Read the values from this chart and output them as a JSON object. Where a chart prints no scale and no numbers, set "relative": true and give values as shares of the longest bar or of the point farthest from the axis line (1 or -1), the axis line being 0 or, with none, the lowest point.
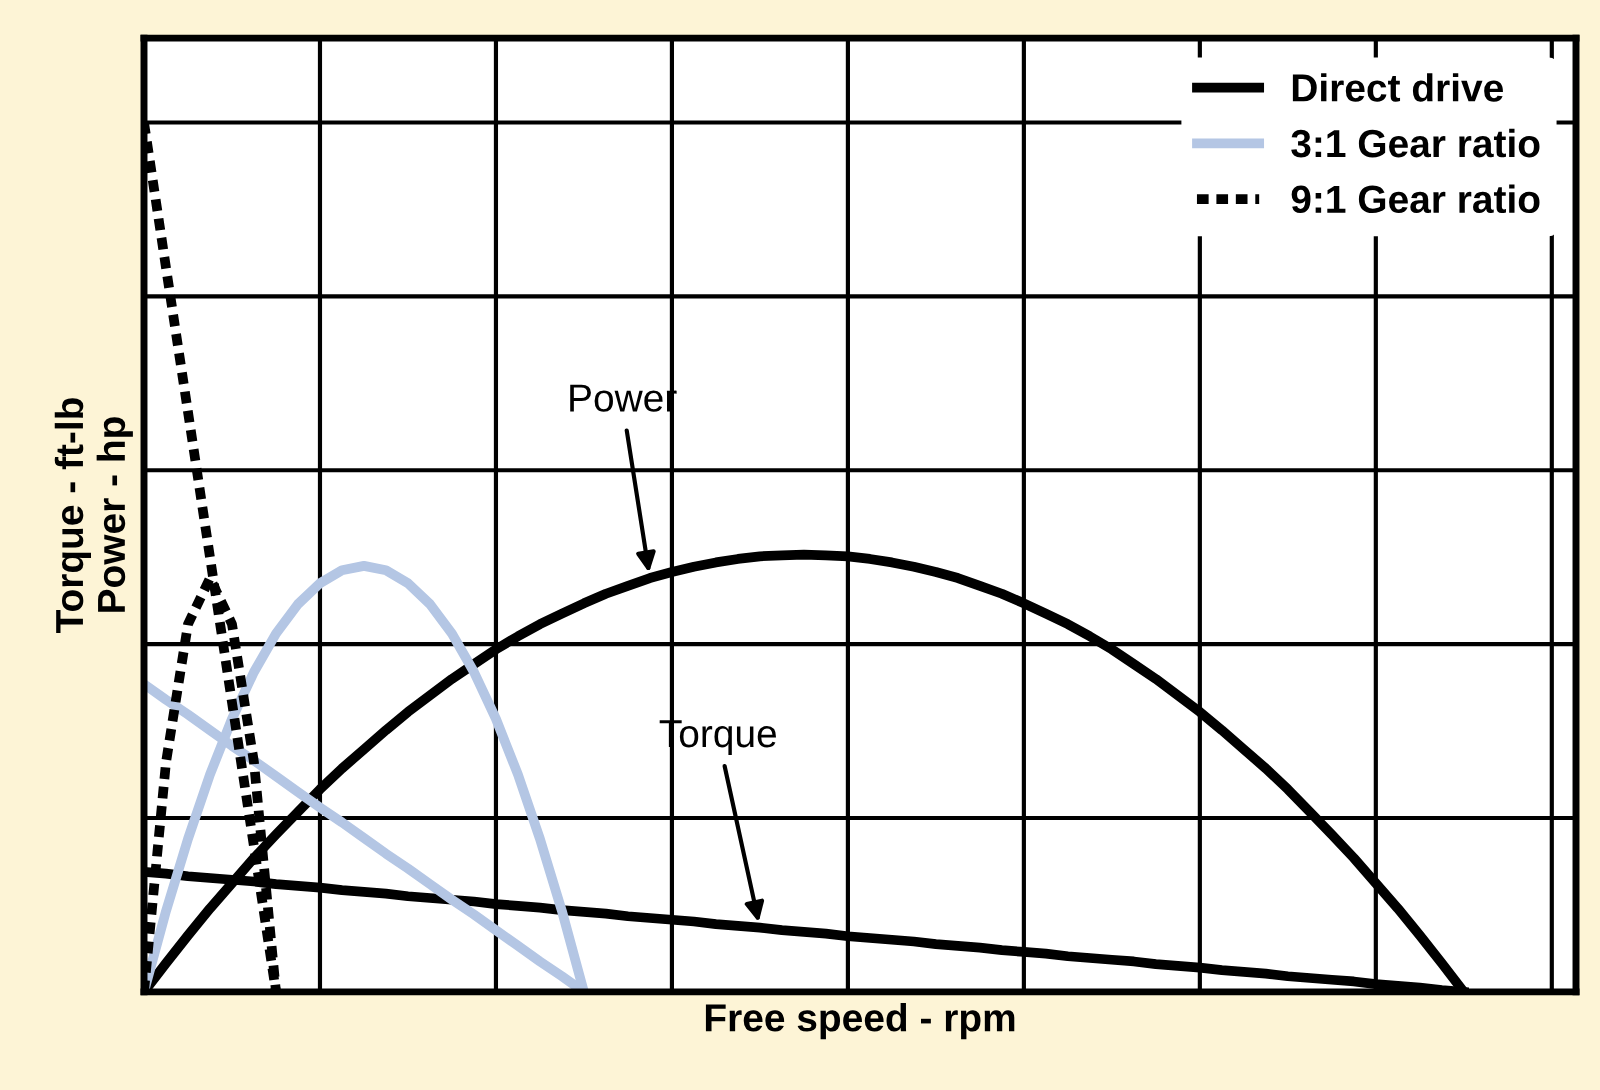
{
  "chart_data": {
    "type": "line",
    "relative": true,
    "xlabel": "Free speed - rpm",
    "ylabel": "Torque - ft-lb\nPower - hp",
    "grid": true,
    "legend": "top right",
    "categories": [
      null,
      null,
      null,
      null,
      null,
      null,
      null,
      null,
      null,
      null,
      null,
      null,
      null,
      null,
      null,
      null,
      null,
      null,
      null,
      null,
      null,
      null,
      null,
      null,
      null,
      null,
      null,
      null,
      null,
      null,
      null,
      null,
      null,
      null,
      null,
      null,
      null,
      null,
      null,
      null,
      null,
      null,
      null,
      null,
      null,
      null,
      null,
      null,
      null,
      null,
      null,
      null,
      null,
      null,
      null,
      null,
      null,
      null,
      null,
      null,
      null
    ],
    "series": [
      {
        "name": "Direct drive",
        "color": "#000000",
        "line_style": "solid",
        "values": [
          0.138,
          0.136,
          0.133,
          0.131,
          0.129,
          0.127,
          0.124,
          0.122,
          0.12,
          0.117,
          0.115,
          0.113,
          0.11,
          0.108,
          0.106,
          0.104,
          0.101,
          0.099,
          0.097,
          0.094,
          0.092,
          0.09,
          0.087,
          0.085,
          0.083,
          0.081,
          0.078,
          0.076,
          0.074,
          0.071,
          0.069,
          0.067,
          0.064,
          0.062,
          0.06,
          0.058,
          0.055,
          0.053,
          0.051,
          0.048,
          0.046,
          0.044,
          0.041,
          0.039,
          0.037,
          0.035,
          0.032,
          0.03,
          0.028,
          0.025,
          0.023,
          0.021,
          0.018,
          0.016,
          0.014,
          0.012,
          0.009,
          0.007,
          0.005,
          0.002,
          0
        ]
      },
      {
        "color": "#000000",
        "line_style": "solid",
        "values": [
          0,
          0.033,
          0.065,
          0.096,
          0.125,
          0.154,
          0.181,
          0.207,
          0.233,
          0.257,
          0.279,
          0.301,
          0.322,
          0.341,
          0.36,
          0.377,
          0.394,
          0.409,
          0.423,
          0.435,
          0.447,
          0.458,
          0.467,
          0.476,
          0.483,
          0.489,
          0.494,
          0.498,
          0.501,
          0.502,
          0.503,
          0.502,
          0.501,
          0.498,
          0.494,
          0.489,
          0.483,
          0.476,
          0.467,
          0.458,
          0.447,
          0.435,
          0.423,
          0.409,
          0.394,
          0.377,
          0.36,
          0.341,
          0.322,
          0.301,
          0.279,
          0.257,
          0.233,
          0.207,
          0.181,
          0.154,
          0.125,
          0.096,
          0.065,
          0.033,
          0
        ]
      },
      {
        "name": "3:1 Gear ratio",
        "color": "#b4c6e4",
        "line_style": "solid",
        "values": [
          0.354,
          0.336,
          0.319,
          0.301,
          0.283,
          0.266,
          0.248,
          0.23,
          0.212,
          0.195,
          0.177,
          0.159,
          0.142,
          0.124,
          0.106,
          0.089,
          0.071,
          0.053,
          0.035,
          0.018,
          0,
          null,
          null,
          null,
          null,
          null,
          null,
          null,
          null,
          null,
          null,
          null,
          null,
          null,
          null,
          null,
          null,
          null,
          null,
          null,
          null,
          null,
          null,
          null,
          null,
          null,
          null,
          null,
          null,
          null,
          null,
          null,
          null,
          null,
          null,
          null,
          null,
          null,
          null,
          null,
          null
        ]
      },
      {
        "color": "#b4c6e4",
        "line_style": "solid",
        "values": [
          0,
          0.093,
          0.176,
          0.25,
          0.314,
          0.368,
          0.412,
          0.446,
          0.47,
          0.485,
          0.49,
          0.485,
          0.47,
          0.446,
          0.412,
          0.368,
          0.314,
          0.25,
          0.176,
          0.093,
          0,
          null,
          null,
          null,
          null,
          null,
          null,
          null,
          null,
          null,
          null,
          null,
          null,
          null,
          null,
          null,
          null,
          null,
          null,
          null,
          null,
          null,
          null,
          null,
          null,
          null,
          null,
          null,
          null,
          null,
          null,
          null,
          null,
          null,
          null,
          null,
          null,
          null,
          null,
          null,
          null
        ]
      },
      {
        "name": "9:1 Gear ratio",
        "color": "#000000",
        "line_style": "dotted",
        "values": [
          1,
          0.833,
          0.667,
          0.5,
          0.333,
          0.167,
          0,
          null,
          null,
          null,
          null,
          null,
          null,
          null,
          null,
          null,
          null,
          null,
          null,
          null,
          null,
          null,
          null,
          null,
          null,
          null,
          null,
          null,
          null,
          null,
          null,
          null,
          null,
          null,
          null,
          null,
          null,
          null,
          null,
          null,
          null,
          null,
          null,
          null,
          null,
          null,
          null,
          null,
          null,
          null,
          null,
          null,
          null,
          null,
          null,
          null,
          null,
          null,
          null,
          null,
          null
        ]
      },
      {
        "color": "#000000",
        "line_style": "dotted",
        "values": [
          0,
          0.264,
          0.423,
          0.476,
          0.423,
          0.264,
          0,
          null,
          null,
          null,
          null,
          null,
          null,
          null,
          null,
          null,
          null,
          null,
          null,
          null,
          null,
          null,
          null,
          null,
          null,
          null,
          null,
          null,
          null,
          null,
          null,
          null,
          null,
          null,
          null,
          null,
          null,
          null,
          null,
          null,
          null,
          null,
          null,
          null,
          null,
          null,
          null,
          null,
          null,
          null,
          null,
          null,
          null,
          null,
          null,
          null,
          null,
          null,
          null,
          null,
          null
        ]
      }
    ],
    "annotations": [
      "Power",
      "Torque"
    ]
  }
}
